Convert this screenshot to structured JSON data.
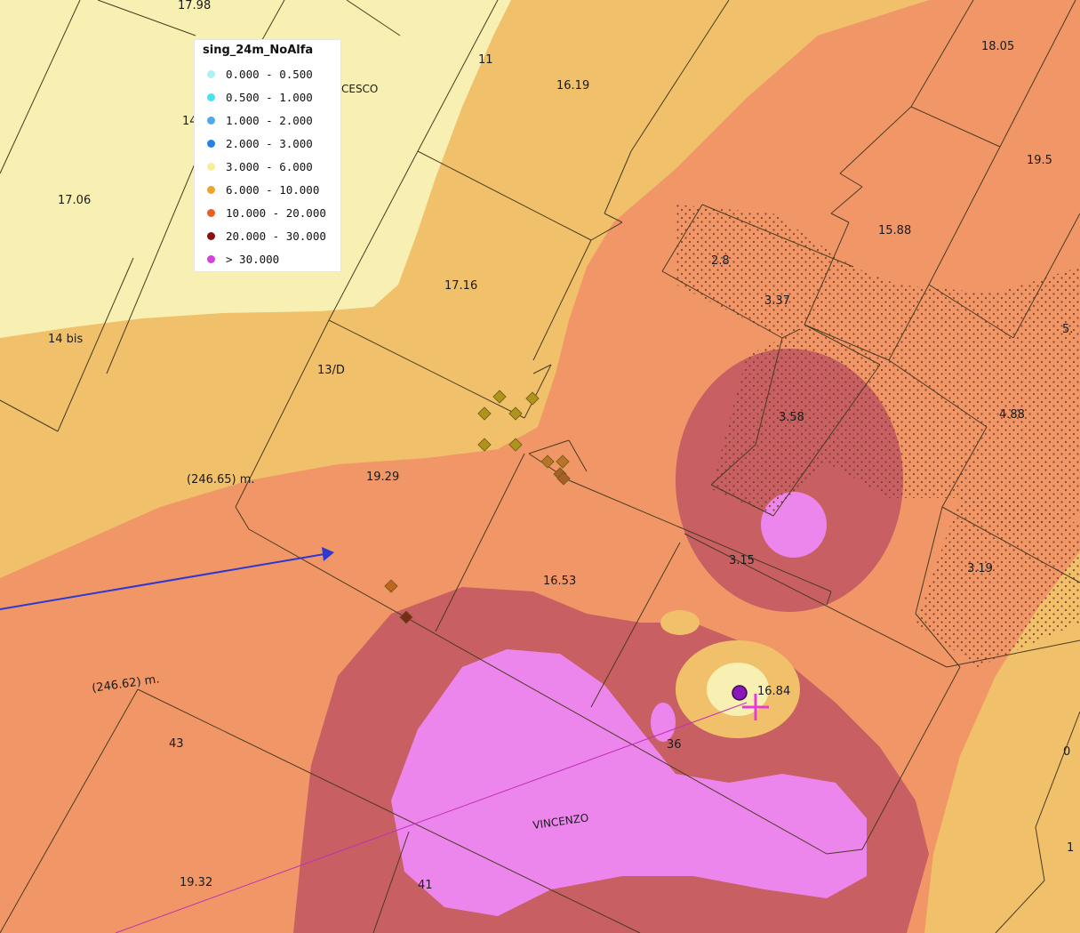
{
  "map": {
    "parcel_labels": [
      "17.98",
      "11",
      "16.19",
      "18.05",
      "NCESCO",
      "14",
      "19.5",
      "17.06",
      "15.88",
      "2.8",
      "3.37",
      "17.16",
      "14 bis",
      "5.",
      "13/D",
      "3.58",
      "4.88",
      "(246.65) m.",
      "19.29",
      "3.15",
      "3.19",
      "16.53",
      "(246.62) m.",
      "16.84",
      "43",
      "36",
      "0",
      "VINCENZO",
      "1",
      "19.32",
      "41"
    ]
  },
  "legend": {
    "title": "sing_24m_NoAlfa",
    "items": [
      {
        "label": "0.000 - 0.500",
        "color": "#aef1f5"
      },
      {
        "label": "0.500 - 1.000",
        "color": "#44e2f2"
      },
      {
        "label": "1.000 - 2.000",
        "color": "#4da9f0"
      },
      {
        "label": "2.000 - 3.000",
        "color": "#1f84e6"
      },
      {
        "label": "3.000 - 6.000",
        "color": "#f6ef96"
      },
      {
        "label": "6.000 - 10.000",
        "color": "#f0a429"
      },
      {
        "label": "10.000 - 20.000",
        "color": "#ec5e1e"
      },
      {
        "label": "20.000 - 30.000",
        "color": "#8c1010"
      },
      {
        "label": "> 30.000",
        "color": "#d43fe0"
      }
    ]
  },
  "colors": {
    "zone_3_6": "#f7f0b2",
    "zone_6_10": "#f0c16a",
    "zone_10_20": "#f19767",
    "zone_20_30": "#c85f63",
    "zone_over_30": "#ec86ed",
    "parcel_line": "#4a3a20",
    "arrow": "#2d39cf",
    "marker": "#8a18b8",
    "crosshair": "#e83ad6"
  }
}
